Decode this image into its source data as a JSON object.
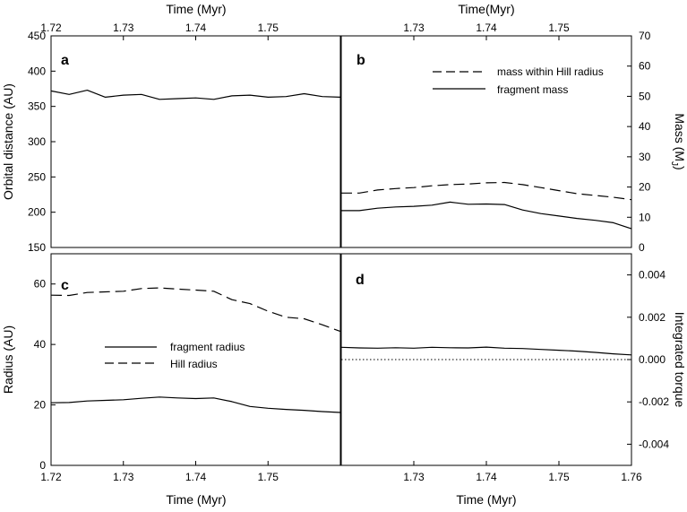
{
  "chart_data": [
    {
      "panel": "a",
      "type": "line",
      "panel_label": "a",
      "top_xlabel": "Time (Myr)",
      "top_xticks": [
        "1.72",
        "1.73",
        "1.74",
        "1.75"
      ],
      "xlim": [
        1.72,
        1.76
      ],
      "ylabel": "Orbital distance (AU)",
      "ylim": [
        150,
        450
      ],
      "yticks": [
        "150",
        "200",
        "250",
        "300",
        "350",
        "400",
        "450"
      ],
      "series": [
        {
          "name": "orbital distance",
          "style": "solid",
          "x": [
            1.72,
            1.7225,
            1.725,
            1.7275,
            1.73,
            1.7325,
            1.735,
            1.7375,
            1.74,
            1.7425,
            1.745,
            1.7475,
            1.75,
            1.7525,
            1.755,
            1.7575,
            1.76
          ],
          "values": [
            372,
            367,
            373,
            363,
            366,
            367,
            360,
            361,
            362,
            360,
            365,
            366,
            363,
            364,
            368,
            364,
            363
          ]
        }
      ]
    },
    {
      "panel": "b",
      "type": "line",
      "panel_label": "b",
      "top_xlabel": "Time(Myr)",
      "top_xticks": [
        "1.73",
        "1.74",
        "1.75"
      ],
      "xlim": [
        1.72,
        1.76
      ],
      "ylabel": "Mass (M",
      "ylabel_sub": "J",
      "ylabel_end": ")",
      "ylim": [
        0,
        70
      ],
      "yticks": [
        "0",
        "10",
        "20",
        "30",
        "40",
        "50",
        "60",
        "70"
      ],
      "legend": [
        "mass within Hill radius",
        "fragment mass"
      ],
      "series": [
        {
          "name": "mass within Hill radius",
          "style": "dashed",
          "x": [
            1.72,
            1.7225,
            1.725,
            1.7275,
            1.73,
            1.7325,
            1.735,
            1.7375,
            1.74,
            1.7425,
            1.745,
            1.7475,
            1.75,
            1.7525,
            1.755,
            1.7575,
            1.76
          ],
          "values": [
            18,
            18,
            19,
            19.5,
            19.8,
            20.4,
            20.8,
            21,
            21.4,
            21.5,
            20.8,
            19.8,
            18.8,
            17.8,
            17.2,
            16.6,
            15.8
          ]
        },
        {
          "name": "fragment mass",
          "style": "solid",
          "x": [
            1.72,
            1.7225,
            1.725,
            1.7275,
            1.73,
            1.7325,
            1.735,
            1.7375,
            1.74,
            1.7425,
            1.745,
            1.7475,
            1.75,
            1.7525,
            1.755,
            1.7575,
            1.76
          ],
          "values": [
            12.2,
            12.2,
            13,
            13.4,
            13.6,
            14,
            15,
            14.3,
            14.4,
            14.2,
            12.4,
            11.2,
            10.4,
            9.6,
            9,
            8.2,
            6.2
          ]
        }
      ]
    },
    {
      "panel": "c",
      "type": "line",
      "panel_label": "c",
      "xlabel": "Time (Myr)",
      "xticks": [
        "1.72",
        "1.73",
        "1.74",
        "1.75"
      ],
      "xlim": [
        1.72,
        1.76
      ],
      "ylabel": "Radius (AU)",
      "ylim": [
        0,
        70
      ],
      "yticks": [
        "0",
        "20",
        "40",
        "60"
      ],
      "legend": [
        "fragment radius",
        "Hill radius"
      ],
      "series": [
        {
          "name": "fragment radius",
          "style": "solid",
          "x": [
            1.72,
            1.7225,
            1.725,
            1.7275,
            1.73,
            1.7325,
            1.735,
            1.7375,
            1.74,
            1.7425,
            1.745,
            1.7475,
            1.75,
            1.7525,
            1.755,
            1.7575,
            1.76
          ],
          "values": [
            20.7,
            20.8,
            21.3,
            21.5,
            21.7,
            22.2,
            22.6,
            22.3,
            22.1,
            22.3,
            21.1,
            19.5,
            18.9,
            18.5,
            18.2,
            17.8,
            17.5
          ]
        },
        {
          "name": "Hill radius",
          "style": "dashed",
          "x": [
            1.72,
            1.7225,
            1.725,
            1.7275,
            1.73,
            1.7325,
            1.735,
            1.7375,
            1.74,
            1.7425,
            1.745,
            1.7475,
            1.75,
            1.7525,
            1.755,
            1.7575,
            1.76
          ],
          "values": [
            56.3,
            56.2,
            57.2,
            57.4,
            57.6,
            58.5,
            58.7,
            58.3,
            58,
            57.6,
            54.8,
            53.5,
            51,
            49,
            48.5,
            46.5,
            44.3
          ]
        }
      ]
    },
    {
      "panel": "d",
      "type": "line",
      "panel_label": "d",
      "xlabel": "Time (Myr)",
      "xticks": [
        "1.73",
        "1.74",
        "1.75",
        "1.76"
      ],
      "xlim": [
        1.72,
        1.76
      ],
      "ylabel": "Integrated torque",
      "ylim": [
        -0.005,
        0.005
      ],
      "yticks": [
        "-0.004",
        "-0.002",
        "0.000",
        "0.002",
        "0.004"
      ],
      "series": [
        {
          "name": "integrated torque",
          "style": "solid",
          "x": [
            1.72,
            1.7225,
            1.725,
            1.7275,
            1.73,
            1.7325,
            1.735,
            1.7375,
            1.74,
            1.7425,
            1.745,
            1.7475,
            1.75,
            1.7525,
            1.755,
            1.7575,
            1.76
          ],
          "values": [
            0.00058,
            0.00055,
            0.00054,
            0.00056,
            0.00054,
            0.00058,
            0.00056,
            0.00055,
            0.00059,
            0.00054,
            0.00052,
            0.00048,
            0.00044,
            0.0004,
            0.00034,
            0.00027,
            0.00022
          ]
        },
        {
          "name": "zero line",
          "style": "dotted",
          "x": [
            1.72,
            1.76
          ],
          "values": [
            0,
            0
          ]
        }
      ]
    }
  ]
}
